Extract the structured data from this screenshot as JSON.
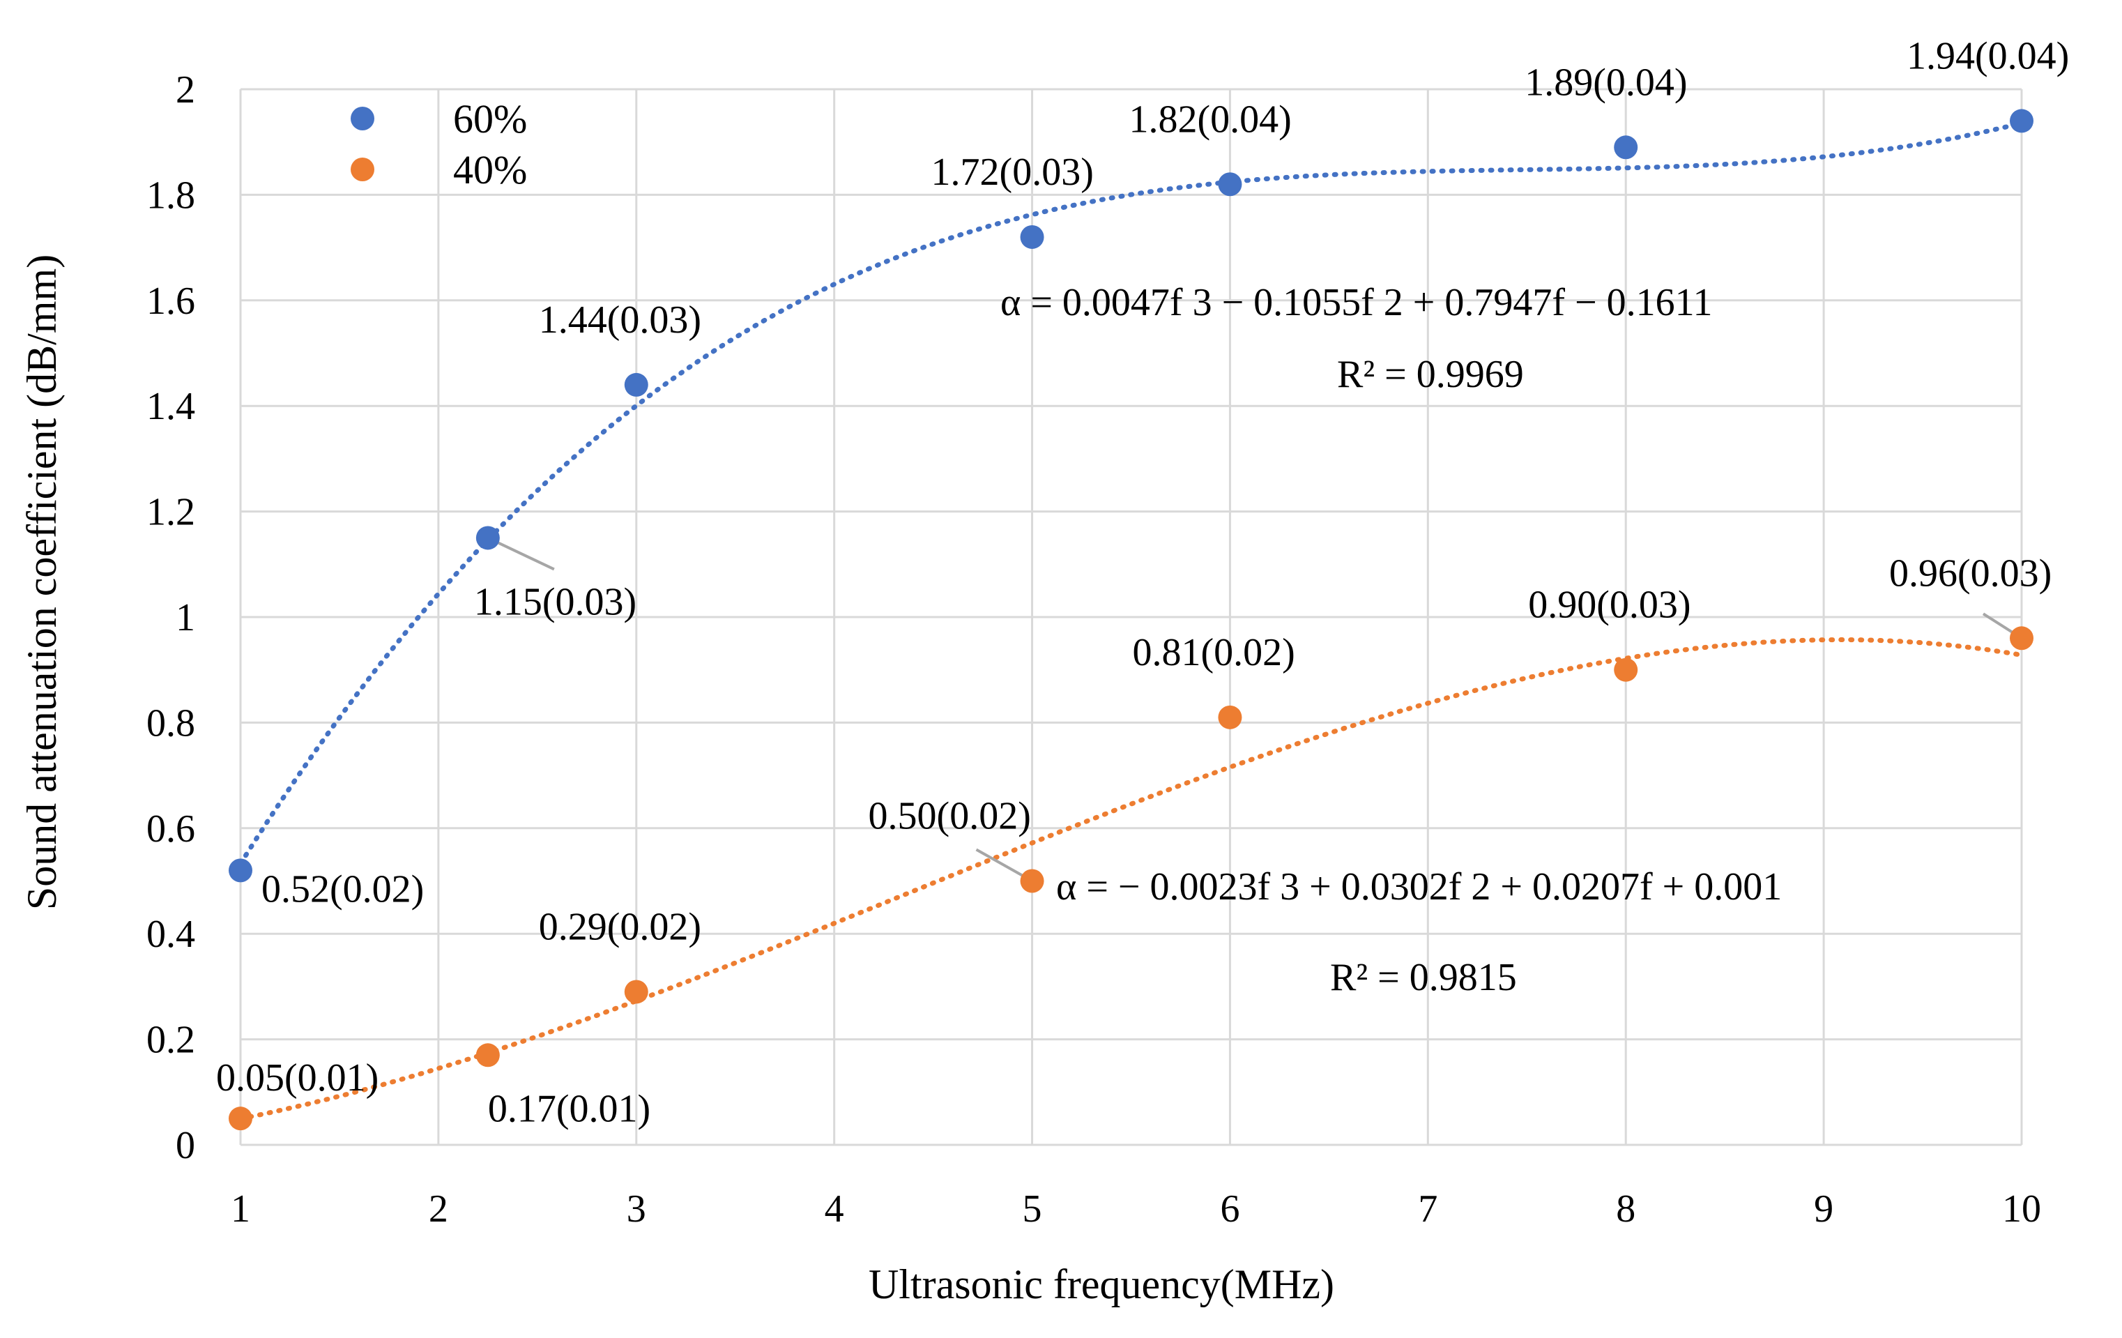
{
  "chart_data": {
    "type": "scatter",
    "xlabel": "Ultrasonic frequency(MHz)",
    "ylabel": "Sound attenuation coefficient (dB/mm)",
    "xlim": [
      1,
      10
    ],
    "ylim": [
      0,
      2
    ],
    "xticks": [
      1,
      2,
      3,
      4,
      5,
      6,
      7,
      8,
      9,
      10
    ],
    "yticks": [
      0,
      0.2,
      0.4,
      0.6,
      0.8,
      1,
      1.2,
      1.4,
      1.6,
      1.8,
      2
    ],
    "ytick_labels": [
      "0",
      "0.2",
      "0.4",
      "0.6",
      "0.8",
      "1",
      "1.2",
      "1.4",
      "1.6",
      "1.8",
      "2"
    ],
    "grid": true,
    "legend_position": "top-left",
    "series": [
      {
        "name": "60%",
        "color": "#4472C4",
        "x": [
          1,
          2.25,
          3,
          5,
          6,
          8,
          10
        ],
        "y": [
          0.52,
          1.15,
          1.44,
          1.72,
          1.82,
          1.89,
          1.94
        ],
        "labels": [
          "0.52(0.02)",
          "1.15(0.03)",
          "1.44(0.03)",
          "1.72(0.03)",
          "1.82(0.04)",
          "1.89(0.04)",
          "1.94(0.04)"
        ],
        "trendline": {
          "type": "poly3",
          "coefficients": [
            0.0047,
            -0.1055,
            0.7947,
            -0.1611
          ]
        },
        "equation": "α = 0.0047f 3 − 0.1055f 2 + 0.7947f − 0.1611",
        "r2": "R² = 0.9969"
      },
      {
        "name": "40%",
        "color": "#ED7D31",
        "x": [
          1,
          2.25,
          3,
          5,
          6,
          8,
          10
        ],
        "y": [
          0.05,
          0.17,
          0.29,
          0.5,
          0.81,
          0.9,
          0.96
        ],
        "labels": [
          "0.05(0.01)",
          "0.17(0.01)",
          "0.29(0.02)",
          "0.50(0.02)",
          "0.81(0.02)",
          "0.90(0.03)",
          "0.96(0.03)"
        ],
        "trendline": {
          "type": "poly3",
          "coefficients": [
            -0.0023,
            0.0302,
            0.0207,
            0.001
          ]
        },
        "equation": "α = − 0.0023f 3 + 0.0302f 2 + 0.0207f + 0.001",
        "r2": "R² = 0.9815"
      }
    ]
  }
}
